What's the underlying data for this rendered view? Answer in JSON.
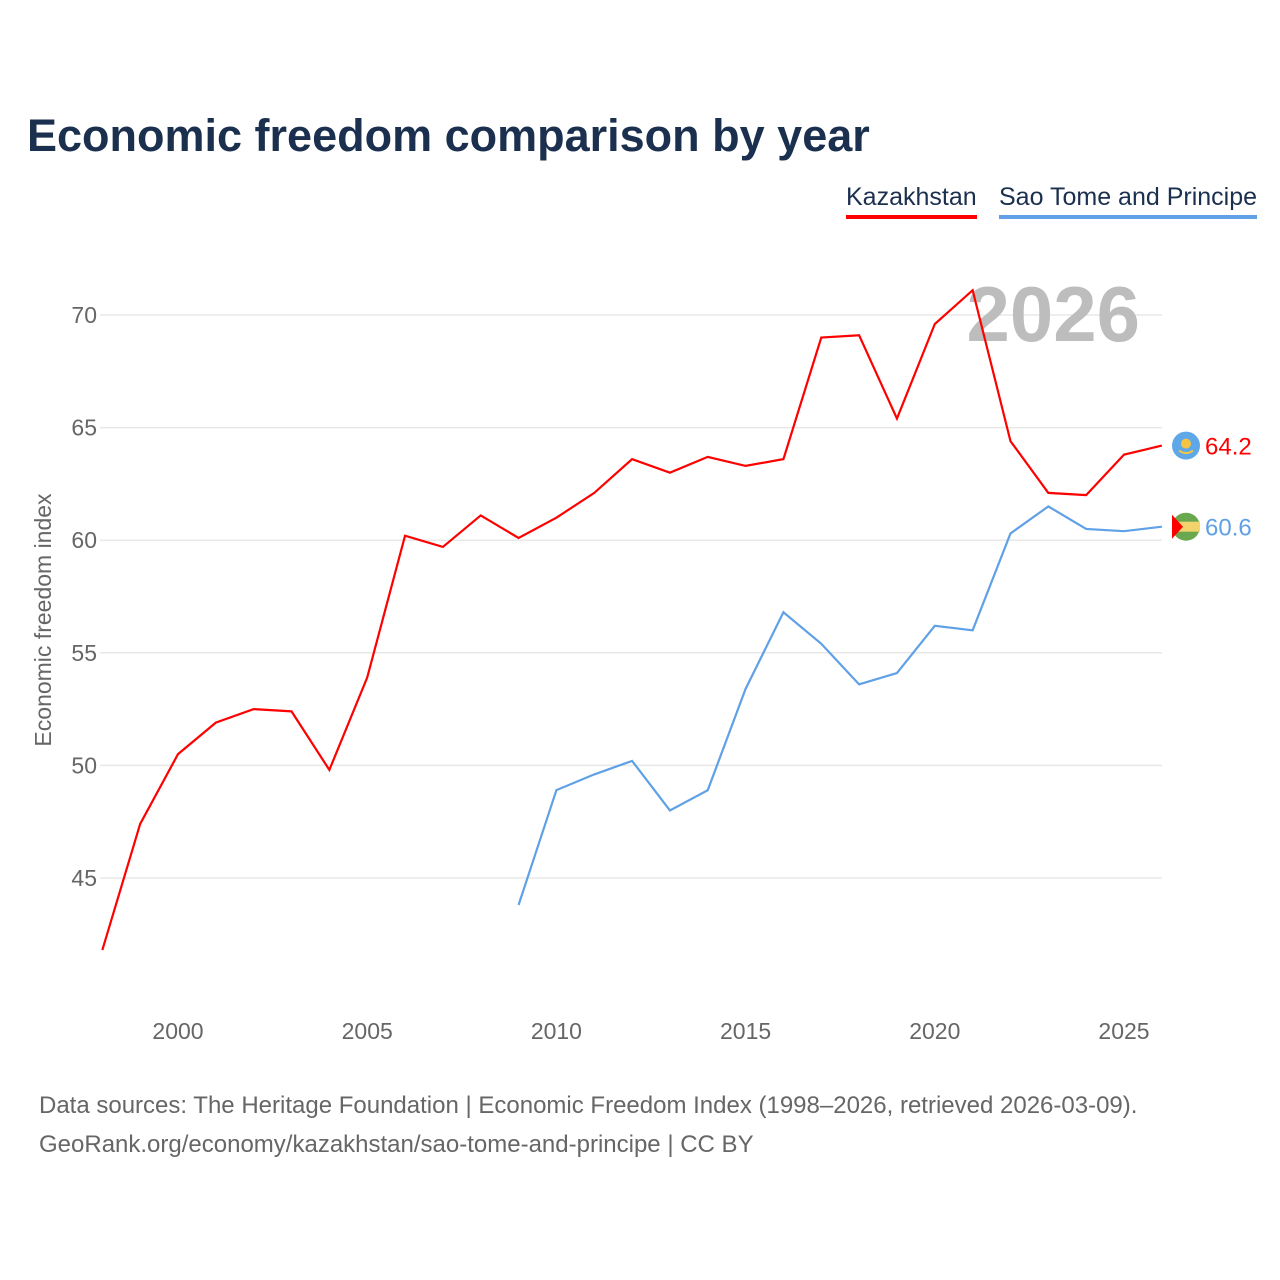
{
  "title": "Economic freedom comparison by year",
  "legend": [
    {
      "label": "Kazakhstan",
      "color": "#ff0000"
    },
    {
      "label": "Sao Tome and Principe",
      "color": "#5fa0e6"
    }
  ],
  "footer": {
    "line1": "Data sources: The Heritage Foundation | Economic Freedom Index (1998–2026, retrieved 2026-03-09).",
    "line2": "GeoRank.org/economy/kazakhstan/sao-tome-and-principe | CC BY"
  },
  "chart_data": {
    "type": "line",
    "title": "Economic freedom comparison by year",
    "xlabel": "",
    "ylabel": "Economic freedom index",
    "year_watermark": "2026",
    "x_ticks": [
      2000,
      2005,
      2010,
      2015,
      2020,
      2025
    ],
    "y_ticks": [
      45,
      50,
      55,
      60,
      65,
      70
    ],
    "xlim": [
      1998,
      2026
    ],
    "ylim": [
      41,
      72
    ],
    "grid": true,
    "legend_position": "top-right",
    "series": [
      {
        "name": "Kazakhstan",
        "color": "#ff0000",
        "end_label": "64.2",
        "x": [
          1998,
          1999,
          2000,
          2001,
          2002,
          2003,
          2004,
          2005,
          2006,
          2007,
          2008,
          2009,
          2010,
          2011,
          2012,
          2013,
          2014,
          2015,
          2016,
          2017,
          2018,
          2019,
          2020,
          2021,
          2022,
          2023,
          2024,
          2025,
          2026
        ],
        "values": [
          41.8,
          47.4,
          50.5,
          51.9,
          52.5,
          52.4,
          49.8,
          53.9,
          60.2,
          59.7,
          61.1,
          60.1,
          61.0,
          62.1,
          63.6,
          63.0,
          63.7,
          63.3,
          63.6,
          69.0,
          69.1,
          65.4,
          69.6,
          71.1,
          64.4,
          62.1,
          62.0,
          63.8,
          64.2
        ]
      },
      {
        "name": "Sao Tome and Principe",
        "color": "#5fa0e6",
        "end_label": "60.6",
        "x": [
          2009,
          2010,
          2011,
          2012,
          2013,
          2014,
          2015,
          2016,
          2017,
          2018,
          2019,
          2020,
          2021,
          2022,
          2023,
          2024,
          2025,
          2026
        ],
        "values": [
          43.8,
          48.9,
          49.6,
          50.2,
          48.0,
          48.9,
          53.4,
          56.8,
          55.4,
          53.6,
          54.1,
          56.2,
          56.0,
          60.3,
          61.5,
          60.5,
          60.4,
          60.6
        ]
      }
    ]
  }
}
